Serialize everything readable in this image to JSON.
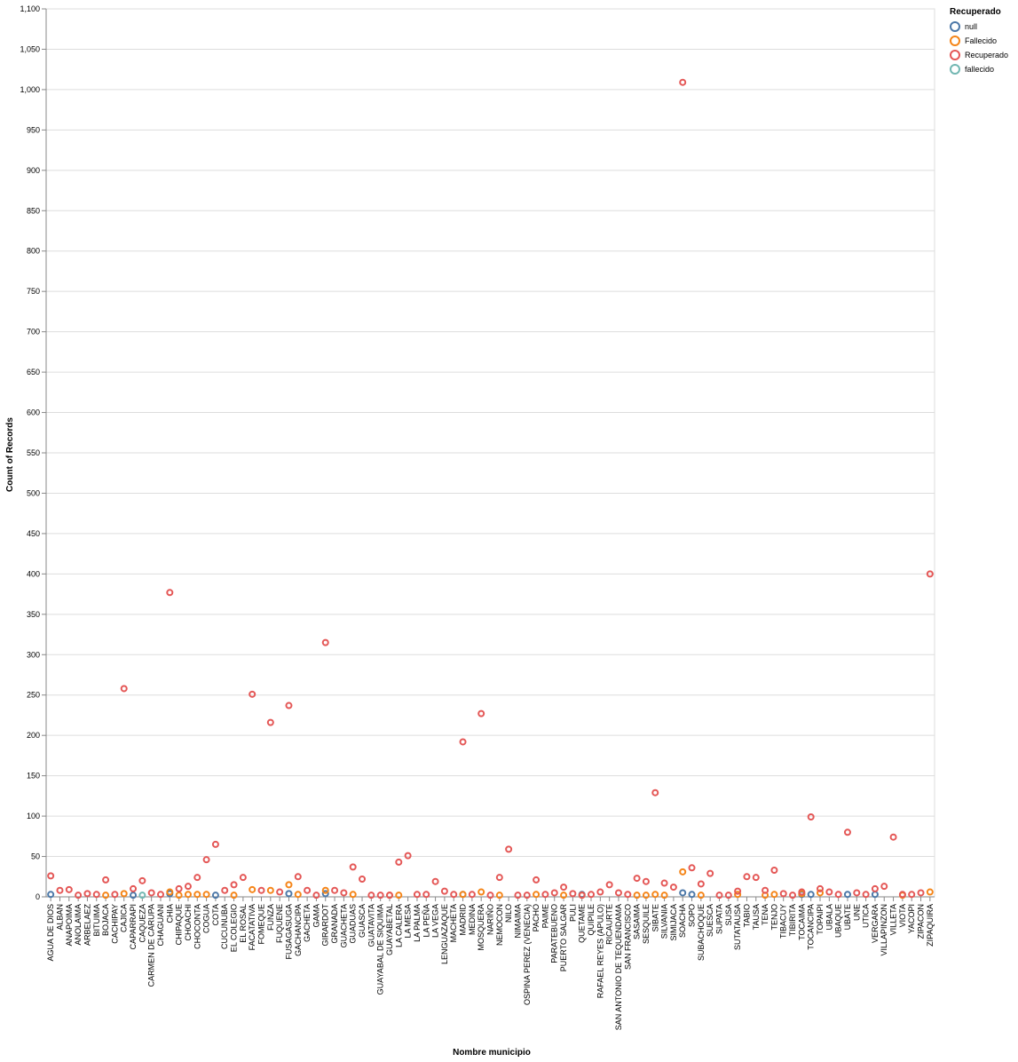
{
  "chart_data": {
    "type": "scatter",
    "xlabel": "Nombre municipio",
    "ylabel": "Count of Records",
    "ylim": [
      0,
      1100
    ],
    "yticks": [
      0,
      50,
      100,
      150,
      200,
      250,
      300,
      350,
      400,
      450,
      500,
      550,
      600,
      650,
      700,
      750,
      800,
      850,
      900,
      950,
      1000,
      1050,
      1100
    ],
    "ytick_labels": [
      "0",
      "50",
      "100",
      "150",
      "200",
      "250",
      "300",
      "350",
      "400",
      "450",
      "500",
      "550",
      "600",
      "650",
      "700",
      "750",
      "800",
      "850",
      "900",
      "950",
      "1,000",
      "1,050",
      "1,100"
    ],
    "grid": true,
    "legend_position": "top-right",
    "legend_title": "Recuperado",
    "series_styles": [
      {
        "name": "null",
        "color": "#4c78a8"
      },
      {
        "name": "Fallecido",
        "color": "#f58518"
      },
      {
        "name": "Recuperado",
        "color": "#e45756"
      },
      {
        "name": "fallecido",
        "color": "#72b7b2"
      }
    ],
    "categories": [
      "AGUA DE DIOS",
      "ALBAN",
      "ANAPOIMA",
      "ANOLAIMA",
      "ARBELAEZ",
      "BITUIMA",
      "BOJACA",
      "CACHIPAY",
      "CAJICA",
      "CAPARRAPI",
      "CAQUEZA",
      "CARMEN DE CARUPA",
      "CHAGUANI",
      "CHIA",
      "CHIPAQUE",
      "CHOACHI",
      "CHOCONTA",
      "COGUA",
      "COTA",
      "CUCUNUBA",
      "EL COLEGIO",
      "EL ROSAL",
      "FACATATIVA",
      "FOMEQUE",
      "FUNZA",
      "FUQUENE",
      "FUSAGASUGA",
      "GACHANCIPA",
      "GACHETA",
      "GAMA",
      "GIRARDOT",
      "GRANADA",
      "GUACHETA",
      "GUADUAS",
      "GUASCA",
      "GUATAVITA",
      "GUAYABAL DE SIQUIMA",
      "GUAYABETAL",
      "LA CALERA",
      "LA MESA",
      "LA PALMA",
      "LA PEÑA",
      "LA VEGA",
      "LENGUAZAQUE",
      "MACHETA",
      "MADRID",
      "MEDINA",
      "MOSQUERA",
      "NARIÑO",
      "NEMOCON",
      "NILO",
      "NIMAIMA",
      "OSPINA PEREZ (VENECIA)",
      "PACHO",
      "PAIME",
      "PARATEBUENO",
      "PUERTO SALGAR",
      "PULI",
      "QUETAME",
      "QUIPILE",
      "RAFAEL REYES (APULO)",
      "RICAURTE",
      "SAN ANTONIO DE TEQUENDAMA",
      "SAN FRANCISCO",
      "SASAIMA",
      "SESQUILE",
      "SIBATE",
      "SILVANIA",
      "SIMIJACA",
      "SOACHA",
      "SOPO",
      "SUBACHOQUE",
      "SUESCA",
      "SUPATA",
      "SUSA",
      "SUTATAUSA",
      "TABIO",
      "TAUSA",
      "TENA",
      "TENJO",
      "TIBACUY",
      "TIBIRITA",
      "TOCAIMA",
      "TOCANCIPA",
      "TOPAIPI",
      "UBALA",
      "UBAQUE",
      "UBATE",
      "UNE",
      "UTICA",
      "VERGARA",
      "VILLAPINZON",
      "VILLETA",
      "VIOTA",
      "YACOPI",
      "ZIPACON",
      "ZIPAQUIRA"
    ],
    "series": [
      {
        "name": "null",
        "values": [
          3,
          null,
          null,
          null,
          null,
          null,
          null,
          null,
          null,
          2,
          null,
          null,
          null,
          4,
          null,
          null,
          null,
          null,
          2,
          null,
          null,
          null,
          null,
          null,
          null,
          null,
          4,
          null,
          null,
          null,
          4,
          null,
          null,
          null,
          null,
          null,
          null,
          null,
          null,
          null,
          null,
          null,
          null,
          null,
          null,
          3,
          null,
          null,
          null,
          null,
          null,
          null,
          null,
          null,
          null,
          null,
          null,
          null,
          3,
          null,
          null,
          null,
          null,
          null,
          null,
          null,
          null,
          null,
          null,
          5,
          3,
          null,
          null,
          null,
          null,
          null,
          null,
          null,
          null,
          null,
          null,
          null,
          3,
          3,
          null,
          null,
          null,
          3,
          null,
          null,
          3,
          null,
          null,
          null,
          null,
          null,
          null
        ]
      },
      {
        "name": "Fallecido",
        "values": [
          null,
          null,
          null,
          null,
          null,
          null,
          2,
          null,
          4,
          null,
          null,
          null,
          null,
          6,
          2,
          3,
          3,
          3,
          null,
          null,
          2,
          null,
          9,
          null,
          8,
          null,
          15,
          3,
          null,
          null,
          8,
          null,
          null,
          3,
          null,
          null,
          null,
          2,
          2,
          null,
          null,
          null,
          null,
          null,
          null,
          3,
          null,
          6,
          null,
          2,
          null,
          null,
          null,
          3,
          null,
          null,
          2,
          null,
          2,
          null,
          null,
          null,
          null,
          null,
          2,
          2,
          3,
          2,
          null,
          31,
          null,
          2,
          null,
          null,
          null,
          3,
          null,
          null,
          2,
          3,
          null,
          null,
          4,
          null,
          5,
          null,
          null,
          null,
          null,
          null,
          null,
          null,
          null,
          2,
          null,
          null,
          6
        ]
      },
      {
        "name": "Recuperado",
        "values": [
          26,
          8,
          9,
          2,
          4,
          3,
          21,
          3,
          258,
          10,
          20,
          5,
          3,
          377,
          10,
          13,
          24,
          46,
          65,
          8,
          15,
          24,
          251,
          8,
          216,
          6,
          237,
          25,
          8,
          2,
          315,
          8,
          5,
          37,
          22,
          2,
          2,
          2,
          43,
          51,
          3,
          3,
          19,
          7,
          3,
          192,
          3,
          227,
          2,
          24,
          59,
          2,
          2,
          21,
          3,
          5,
          12,
          4,
          2,
          3,
          6,
          15,
          5,
          3,
          23,
          19,
          129,
          17,
          12,
          1009,
          36,
          16,
          29,
          2,
          2,
          7,
          25,
          24,
          8,
          33,
          4,
          2,
          6,
          99,
          10,
          6,
          3,
          80,
          5,
          3,
          10,
          13,
          74,
          3,
          3,
          5,
          400
        ]
      },
      {
        "name": "fallecido",
        "values": [
          null,
          null,
          null,
          null,
          null,
          null,
          null,
          null,
          null,
          null,
          2,
          null,
          null,
          null,
          null,
          null,
          null,
          null,
          null,
          null,
          null,
          null,
          null,
          null,
          null,
          null,
          null,
          null,
          null,
          null,
          null,
          null,
          null,
          null,
          null,
          null,
          null,
          null,
          null,
          null,
          null,
          null,
          null,
          null,
          null,
          null,
          null,
          null,
          null,
          null,
          null,
          null,
          null,
          null,
          null,
          null,
          null,
          null,
          null,
          null,
          null,
          null,
          null,
          null,
          null,
          null,
          null,
          null,
          null,
          null,
          null,
          null,
          null,
          null,
          null,
          null,
          null,
          null,
          null,
          null,
          null,
          null,
          null,
          null,
          null,
          null,
          null,
          null,
          null,
          null,
          null,
          null,
          null,
          null,
          null,
          null,
          null
        ]
      }
    ]
  }
}
